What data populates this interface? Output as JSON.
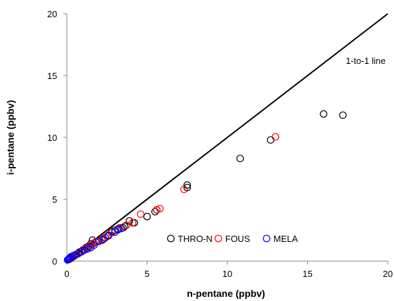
{
  "chart_data": {
    "type": "scatter",
    "xlabel": "n-pentane (ppbv)",
    "ylabel": "i-pentane (ppbv)",
    "xlim": [
      0,
      20
    ],
    "ylim": [
      0,
      20
    ],
    "x_ticks": [
      "0",
      "5",
      "10",
      "15",
      "20"
    ],
    "y_ticks": [
      "0",
      "5",
      "10",
      "15",
      "20"
    ],
    "grid": false,
    "legend_position": "bottom-right",
    "reference_line": {
      "label": "1-to-1 line",
      "from": [
        0,
        0
      ],
      "to": [
        20,
        20
      ]
    },
    "series": [
      {
        "name": "THRO-N",
        "color": "#000000",
        "points": [
          [
            0.15,
            0.15
          ],
          [
            0.3,
            0.3
          ],
          [
            0.45,
            0.4
          ],
          [
            0.6,
            0.55
          ],
          [
            0.8,
            0.75
          ],
          [
            1.0,
            0.9
          ],
          [
            1.2,
            1.1
          ],
          [
            1.35,
            1.2
          ],
          [
            1.5,
            1.4
          ],
          [
            1.6,
            1.7
          ],
          [
            1.8,
            1.55
          ],
          [
            2.0,
            1.6
          ],
          [
            2.2,
            1.7
          ],
          [
            2.4,
            1.9
          ],
          [
            2.6,
            2.1
          ],
          [
            2.8,
            2.4
          ],
          [
            3.0,
            2.5
          ],
          [
            3.2,
            2.6
          ],
          [
            3.5,
            2.7
          ],
          [
            3.6,
            2.8
          ],
          [
            3.9,
            3.25
          ],
          [
            4.2,
            3.1
          ],
          [
            5.0,
            3.6
          ],
          [
            5.5,
            4.0
          ],
          [
            5.6,
            4.15
          ],
          [
            7.5,
            6.15
          ],
          [
            7.5,
            5.95
          ],
          [
            10.8,
            8.3
          ],
          [
            12.7,
            9.8
          ],
          [
            16.0,
            11.9
          ],
          [
            17.2,
            11.8
          ]
        ]
      },
      {
        "name": "FOUS",
        "color": "#ff0000",
        "points": [
          [
            0.3,
            0.25
          ],
          [
            0.5,
            0.45
          ],
          [
            0.7,
            0.6
          ],
          [
            0.9,
            0.8
          ],
          [
            1.1,
            0.95
          ],
          [
            1.3,
            1.1
          ],
          [
            1.5,
            1.25
          ],
          [
            1.7,
            1.45
          ],
          [
            1.9,
            1.6
          ],
          [
            2.2,
            1.8
          ],
          [
            2.5,
            2.0
          ],
          [
            2.8,
            2.3
          ],
          [
            3.3,
            2.7
          ],
          [
            3.7,
            2.9
          ],
          [
            4.1,
            3.1
          ],
          [
            4.6,
            3.8
          ],
          [
            5.6,
            4.15
          ],
          [
            5.8,
            4.25
          ],
          [
            7.3,
            5.8
          ],
          [
            13.0,
            10.05
          ]
        ]
      },
      {
        "name": "MELA",
        "color": "#0000ff",
        "points": [
          [
            0.05,
            0.1
          ],
          [
            0.1,
            0.15
          ],
          [
            0.15,
            0.2
          ],
          [
            0.2,
            0.25
          ],
          [
            0.25,
            0.35
          ],
          [
            0.35,
            0.4
          ],
          [
            0.5,
            0.5
          ],
          [
            0.7,
            0.6
          ],
          [
            0.9,
            0.75
          ],
          [
            1.1,
            0.9
          ],
          [
            1.3,
            1.0
          ],
          [
            1.5,
            1.1
          ],
          [
            1.7,
            1.3
          ],
          [
            2.0,
            1.6
          ],
          [
            2.3,
            1.8
          ],
          [
            2.6,
            2.05
          ],
          [
            3.0,
            2.35
          ],
          [
            3.2,
            2.55
          ],
          [
            3.4,
            2.65
          ]
        ]
      }
    ]
  }
}
